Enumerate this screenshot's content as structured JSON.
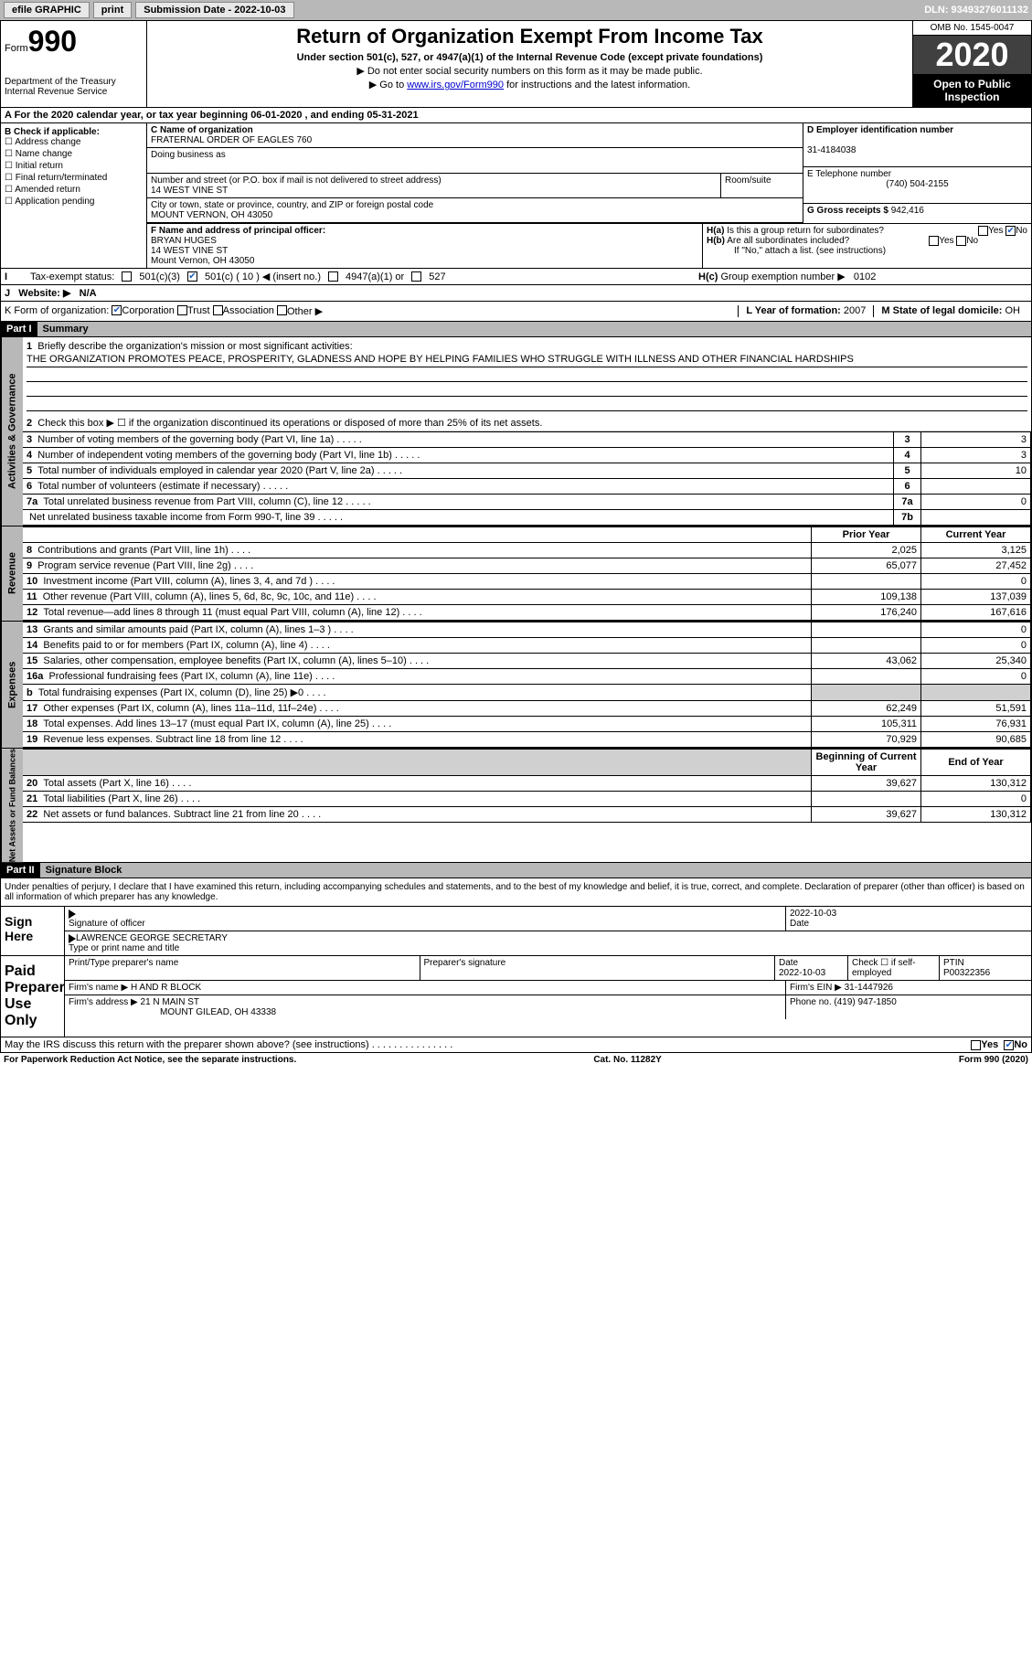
{
  "topbar": {
    "efile": "efile GRAPHIC",
    "print": "print",
    "sub_label": "Submission Date - 2022-10-03",
    "dln": "DLN: 93493276011132"
  },
  "header": {
    "form_word": "Form",
    "form_num": "990",
    "dept": "Department of the Treasury\nInternal Revenue Service",
    "title": "Return of Organization Exempt From Income Tax",
    "subtitle": "Under section 501(c), 527, or 4947(a)(1) of the Internal Revenue Code (except private foundations)",
    "note1": "▶ Do not enter social security numbers on this form as it may be made public.",
    "note2_pre": "▶ Go to ",
    "note2_link": "www.irs.gov/Form990",
    "note2_post": " for instructions and the latest information.",
    "omb": "OMB No. 1545-0047",
    "year": "2020",
    "inspect": "Open to Public Inspection"
  },
  "period": {
    "text_a": "A For the 2020 calendar year, or tax year beginning 06-01-2020",
    "text_b": ", and ending 05-31-2021"
  },
  "boxB": {
    "label": "B Check if applicable:",
    "opts": [
      "Address change",
      "Name change",
      "Initial return",
      "Final return/terminated",
      "Amended return",
      "Application pending"
    ]
  },
  "boxC": {
    "name_label": "C Name of organization",
    "name": "FRATERNAL ORDER OF EAGLES 760",
    "dba_label": "Doing business as",
    "dba": "",
    "addr_label": "Number and street (or P.O. box if mail is not delivered to street address)",
    "addr": "14 WEST VINE ST",
    "room_label": "Room/suite",
    "city_label": "City or town, state or province, country, and ZIP or foreign postal code",
    "city": "MOUNT VERNON, OH  43050"
  },
  "boxD": {
    "label": "D Employer identification number",
    "val": "31-4184038"
  },
  "boxE": {
    "label": "E Telephone number",
    "val": "(740) 504-2155"
  },
  "boxG": {
    "label": "G Gross receipts $",
    "val": "942,416"
  },
  "boxF": {
    "label": "F Name and address of principal officer:",
    "name": "BRYAN HUGES",
    "addr1": "14 WEST VINE ST",
    "addr2": "Mount Vernon, OH  43050"
  },
  "boxH": {
    "ha": "Is this a group return for subordinates?",
    "hb": "Are all subordinates included?",
    "hnote": "If \"No,\" attach a list. (see instructions)",
    "hc_label": "Group exemption number ▶",
    "hc_val": "0102"
  },
  "boxI": {
    "label": "Tax-exempt status:",
    "o1": "501(c)(3)",
    "o2": "501(c) ( 10 ) ◀ (insert no.)",
    "o3": "4947(a)(1) or",
    "o4": "527"
  },
  "boxJ": {
    "label": "Website: ▶",
    "val": "N/A"
  },
  "boxK": {
    "label": "K Form of organization:",
    "o1": "Corporation",
    "o2": "Trust",
    "o3": "Association",
    "o4": "Other ▶"
  },
  "boxL": {
    "label": "L Year of formation:",
    "val": "2007"
  },
  "boxM": {
    "label": "M State of legal domicile:",
    "val": "OH"
  },
  "part1": {
    "hdr": "Part I",
    "title": "Summary",
    "vtab1": "Activities & Governance",
    "vtab2": "Revenue",
    "vtab3": "Expenses",
    "vtab4": "Net Assets or Fund Balances",
    "l1": "Briefly describe the organization's mission or most significant activities:",
    "mission": "THE ORGANIZATION PROMOTES PEACE, PROSPERITY, GLADNESS AND HOPE BY HELPING FAMILIES WHO STRUGGLE WITH ILLNESS AND OTHER FINANCIAL HARDSHIPS",
    "l2": "Check this box ▶ ☐ if the organization discontinued its operations or disposed of more than 25% of its net assets.",
    "rows_gov": [
      {
        "n": "3",
        "label": "Number of voting members of the governing body (Part VI, line 1a)",
        "box": "3",
        "val": "3"
      },
      {
        "n": "4",
        "label": "Number of independent voting members of the governing body (Part VI, line 1b)",
        "box": "4",
        "val": "3"
      },
      {
        "n": "5",
        "label": "Total number of individuals employed in calendar year 2020 (Part V, line 2a)",
        "box": "5",
        "val": "10"
      },
      {
        "n": "6",
        "label": "Total number of volunteers (estimate if necessary)",
        "box": "6",
        "val": ""
      },
      {
        "n": "7a",
        "label": "Total unrelated business revenue from Part VIII, column (C), line 12",
        "box": "7a",
        "val": "0"
      },
      {
        "n": "",
        "label": "Net unrelated business taxable income from Form 990-T, line 39",
        "box": "7b",
        "val": ""
      }
    ],
    "col_prior": "Prior Year",
    "col_curr": "Current Year",
    "col_beg": "Beginning of Current Year",
    "col_end": "End of Year",
    "rows_rev": [
      {
        "n": "8",
        "label": "Contributions and grants (Part VIII, line 1h)",
        "p": "2,025",
        "c": "3,125"
      },
      {
        "n": "9",
        "label": "Program service revenue (Part VIII, line 2g)",
        "p": "65,077",
        "c": "27,452"
      },
      {
        "n": "10",
        "label": "Investment income (Part VIII, column (A), lines 3, 4, and 7d )",
        "p": "",
        "c": "0"
      },
      {
        "n": "11",
        "label": "Other revenue (Part VIII, column (A), lines 5, 6d, 8c, 9c, 10c, and 11e)",
        "p": "109,138",
        "c": "137,039"
      },
      {
        "n": "12",
        "label": "Total revenue—add lines 8 through 11 (must equal Part VIII, column (A), line 12)",
        "p": "176,240",
        "c": "167,616"
      }
    ],
    "rows_exp": [
      {
        "n": "13",
        "label": "Grants and similar amounts paid (Part IX, column (A), lines 1–3 )",
        "p": "",
        "c": "0"
      },
      {
        "n": "14",
        "label": "Benefits paid to or for members (Part IX, column (A), line 4)",
        "p": "",
        "c": "0"
      },
      {
        "n": "15",
        "label": "Salaries, other compensation, employee benefits (Part IX, column (A), lines 5–10)",
        "p": "43,062",
        "c": "25,340"
      },
      {
        "n": "16a",
        "label": "Professional fundraising fees (Part IX, column (A), line 11e)",
        "p": "",
        "c": "0"
      },
      {
        "n": "b",
        "label": "Total fundraising expenses (Part IX, column (D), line 25) ▶0",
        "p": "",
        "c": "",
        "shade": true
      },
      {
        "n": "17",
        "label": "Other expenses (Part IX, column (A), lines 11a–11d, 11f–24e)",
        "p": "62,249",
        "c": "51,591"
      },
      {
        "n": "18",
        "label": "Total expenses. Add lines 13–17 (must equal Part IX, column (A), line 25)",
        "p": "105,311",
        "c": "76,931"
      },
      {
        "n": "19",
        "label": "Revenue less expenses. Subtract line 18 from line 12",
        "p": "70,929",
        "c": "90,685"
      }
    ],
    "rows_net": [
      {
        "n": "20",
        "label": "Total assets (Part X, line 16)",
        "p": "39,627",
        "c": "130,312"
      },
      {
        "n": "21",
        "label": "Total liabilities (Part X, line 26)",
        "p": "",
        "c": "0"
      },
      {
        "n": "22",
        "label": "Net assets or fund balances. Subtract line 21 from line 20",
        "p": "39,627",
        "c": "130,312"
      }
    ]
  },
  "part2": {
    "hdr": "Part II",
    "title": "Signature Block",
    "penalty": "Under penalties of perjury, I declare that I have examined this return, including accompanying schedules and statements, and to the best of my knowledge and belief, it is true, correct, and complete. Declaration of preparer (other than officer) is based on all information of which preparer has any knowledge.",
    "sign_here": "Sign Here",
    "sig_officer": "Signature of officer",
    "sig_date": "2022-10-03",
    "date_label": "Date",
    "officer_name": "LAWRENCE GEORGE  SECRETARY",
    "type_label": "Type or print name and title",
    "paid": "Paid Preparer Use Only",
    "prep_name_label": "Print/Type preparer's name",
    "prep_sig_label": "Preparer's signature",
    "prep_date_label": "Date",
    "prep_date": "2022-10-03",
    "prep_self": "Check ☐ if self-employed",
    "ptin_label": "PTIN",
    "ptin": "P00322356",
    "firm_name_label": "Firm's name    ▶",
    "firm_name": "H AND R BLOCK",
    "firm_ein_label": "Firm's EIN ▶",
    "firm_ein": "31-1447926",
    "firm_addr_label": "Firm's address ▶",
    "firm_addr1": "21 N MAIN ST",
    "firm_addr2": "MOUNT GILEAD, OH  43338",
    "phone_label": "Phone no.",
    "phone": "(419) 947-1850",
    "discuss": "May the IRS discuss this return with the preparer shown above? (see instructions)"
  },
  "footer": {
    "left": "For Paperwork Reduction Act Notice, see the separate instructions.",
    "mid": "Cat. No. 11282Y",
    "right": "Form 990 (2020)"
  }
}
